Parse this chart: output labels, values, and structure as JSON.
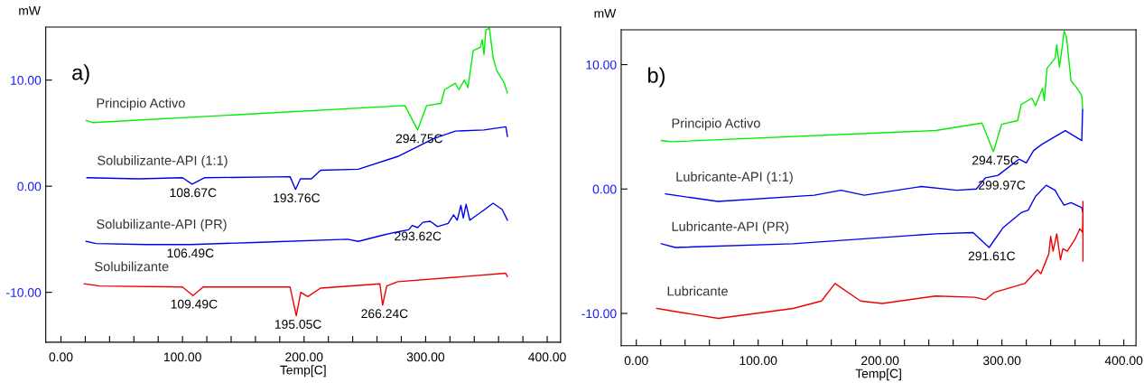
{
  "chart_data": [
    {
      "type": "line",
      "title": "a)",
      "xlabel": "Temp[C]",
      "ylabel": "mW",
      "legend": false,
      "grid": false,
      "marker": "none",
      "line_style": "solid",
      "xlim": [
        -12.5,
        411
      ],
      "ylim": [
        -14.7,
        15
      ],
      "xticks": [
        {
          "value": 0,
          "label": "0.00"
        },
        {
          "value": 20,
          "label": null
        },
        {
          "value": 40,
          "label": null
        },
        {
          "value": 60,
          "label": null
        },
        {
          "value": 80,
          "label": null
        },
        {
          "value": 100,
          "label": "100.00"
        },
        {
          "value": 120,
          "label": null
        },
        {
          "value": 140,
          "label": null
        },
        {
          "value": 160,
          "label": null
        },
        {
          "value": 180,
          "label": null
        },
        {
          "value": 200,
          "label": "200.00"
        },
        {
          "value": 220,
          "label": null
        },
        {
          "value": 240,
          "label": null
        },
        {
          "value": 260,
          "label": null
        },
        {
          "value": 280,
          "label": null
        },
        {
          "value": 300,
          "label": "300.00"
        },
        {
          "value": 320,
          "label": null
        },
        {
          "value": 340,
          "label": null
        },
        {
          "value": 360,
          "label": null
        },
        {
          "value": 380,
          "label": null
        },
        {
          "value": 400,
          "label": "400.00"
        }
      ],
      "yticks": [
        {
          "value": -10,
          "label": "-10.00"
        },
        {
          "value": 0,
          "label": "0.00"
        },
        {
          "value": 10,
          "label": "10.00"
        }
      ],
      "series": [
        {
          "name": "Principio Activo",
          "color": "#00ee00",
          "x": [
            20.7,
            25.9,
            283,
            293.4,
            300.8,
            312.6,
            315.6,
            324.5,
            327.4,
            331.9,
            334.8,
            339.2,
            345,
            346.6,
            348,
            349.5,
            352.5,
            355.5,
            358.5,
            364.4,
            367.3
          ],
          "values": [
            6.2,
            6.0,
            7.6,
            5.3,
            7.6,
            7.8,
            9.1,
            9.7,
            9.1,
            10.0,
            9.3,
            12.8,
            13.1,
            13.8,
            12.4,
            14.7,
            14.9,
            12.1,
            10.9,
            9.8,
            8.8
          ]
        },
        {
          "name": "Solubilizante-API (1:1)",
          "color": "#0000ee",
          "x": [
            21.4,
            64,
            100,
            107.9,
            118,
            188.5,
            193,
            197,
            206,
            213.6,
            244.6,
            277,
            306.7,
            324.5,
            348,
            366,
            367.3
          ],
          "values": [
            0.8,
            0.7,
            0.8,
            0.2,
            0.8,
            0.9,
            -0.3,
            0.7,
            0.7,
            1.5,
            1.6,
            2.8,
            4.5,
            5.2,
            5.3,
            5.6,
            4.7
          ]
        },
        {
          "name": "Solubilizante-API (PR)",
          "color": "#0000ee",
          "x": [
            20.7,
            28.8,
            70,
            106.8,
            158.9,
            235.8,
            244.6,
            265,
            277,
            286,
            289,
            293.4,
            297.8,
            303.8,
            309.7,
            318.5,
            323,
            326,
            329,
            331,
            333.3,
            336.3,
            345,
            355.5,
            363,
            367.3
          ],
          "values": [
            -5.2,
            -5.4,
            -5.5,
            -5.5,
            -5.3,
            -5.0,
            -5.2,
            -4.6,
            -4.3,
            -4.1,
            -3.7,
            -3.9,
            -3.4,
            -3.3,
            -3.8,
            -3.5,
            -2.7,
            -3.2,
            -1.8,
            -3.0,
            -1.7,
            -3.2,
            -2.5,
            -1.6,
            -2.2,
            -3.2
          ]
        },
        {
          "name": "Solubilizante",
          "color": "#ee0000",
          "x": [
            19.2,
            31.8,
            100,
            108.6,
            117,
            188.5,
            193.6,
            197.3,
            203,
            213.6,
            262.4,
            264.6,
            268,
            277,
            365.9,
            367.3
          ],
          "values": [
            -9.2,
            -9.4,
            -9.5,
            -10.3,
            -9.5,
            -9.5,
            -12.2,
            -10.0,
            -10.4,
            -9.6,
            -9.2,
            -11.2,
            -9.4,
            -9.0,
            -8.2,
            -8.5
          ]
        }
      ],
      "annotations": [
        {
          "text": "294.75C",
          "x": 294.75,
          "y": 5.3
        },
        {
          "text": "108.67C",
          "x": 108.67,
          "y": 0.2
        },
        {
          "text": "193.76C",
          "x": 193.76,
          "y": -0.3
        },
        {
          "text": "106.49C",
          "x": 106.49,
          "y": -5.5
        },
        {
          "text": "293.62C",
          "x": 293.62,
          "y": -3.9
        },
        {
          "text": "109.49C",
          "x": 109.49,
          "y": -10.3
        },
        {
          "text": "195.05C",
          "x": 195.05,
          "y": -12.2
        },
        {
          "text": "266.24C",
          "x": 266.24,
          "y": -11.2
        }
      ]
    },
    {
      "type": "line",
      "title": "b)",
      "xlabel": "Temp[C]",
      "ylabel": "mW",
      "legend": false,
      "grid": false,
      "marker": "none",
      "line_style": "solid",
      "xlim": [
        -12.4,
        410
      ],
      "ylim": [
        -12.6,
        12.8
      ],
      "xticks": [
        {
          "value": 0,
          "label": "0.00"
        },
        {
          "value": 20,
          "label": null
        },
        {
          "value": 40,
          "label": null
        },
        {
          "value": 60,
          "label": null
        },
        {
          "value": 80,
          "label": null
        },
        {
          "value": 100,
          "label": "100.00"
        },
        {
          "value": 120,
          "label": null
        },
        {
          "value": 140,
          "label": null
        },
        {
          "value": 160,
          "label": null
        },
        {
          "value": 180,
          "label": null
        },
        {
          "value": 200,
          "label": "200.00"
        },
        {
          "value": 220,
          "label": null
        },
        {
          "value": 240,
          "label": null
        },
        {
          "value": 260,
          "label": null
        },
        {
          "value": 280,
          "label": null
        },
        {
          "value": 300,
          "label": "300.00"
        },
        {
          "value": 320,
          "label": null
        },
        {
          "value": 340,
          "label": null
        },
        {
          "value": 360,
          "label": null
        },
        {
          "value": 380,
          "label": null
        },
        {
          "value": 400,
          "label": "400.00"
        }
      ],
      "yticks": [
        {
          "value": -10,
          "label": "-10.00"
        },
        {
          "value": 0,
          "label": "0.00"
        },
        {
          "value": 10,
          "label": "10.00"
        }
      ],
      "series": [
        {
          "name": "Principio Activo",
          "color": "#00ee00",
          "x": [
            20.5,
            29,
            245.6,
            283.6,
            293,
            299.7,
            312.9,
            315.8,
            324.6,
            327.5,
            333.3,
            334.8,
            337,
            343.6,
            345,
            347.2,
            349.4,
            351,
            353,
            356.7,
            361,
            365.5,
            366.2
          ],
          "values": [
            3.9,
            3.8,
            4.7,
            5.3,
            3.0,
            5.2,
            5.5,
            6.8,
            7.3,
            6.7,
            8.1,
            7.1,
            9.7,
            10.5,
            11.6,
            9.8,
            11.4,
            12.7,
            12.2,
            8.7,
            8.2,
            7.5,
            6.5
          ]
        },
        {
          "name": "Lubricante-API (1:1)",
          "color": "#0000ee",
          "x": [
            24,
            67,
            146,
            168,
            187,
            234,
            263,
            279,
            286.5,
            296.8,
            314,
            320,
            326,
            333,
            352,
            365.5,
            366.2
          ],
          "values": [
            -0.4,
            -1.0,
            -0.5,
            -0.1,
            -0.5,
            0.2,
            -0.1,
            0,
            0.9,
            1.1,
            2.4,
            2.1,
            3.1,
            3.6,
            4.7,
            3.9,
            6.4
          ]
        },
        {
          "name": "Lubricante-API (PR)",
          "color": "#0000ee",
          "x": [
            20.5,
            32,
            128.7,
            245.6,
            276.3,
            289.5,
            301,
            315.8,
            321.6,
            327.5,
            336.3,
            343.6,
            346.5,
            351,
            356.7,
            365.5,
            366.2
          ],
          "values": [
            -4.4,
            -4.7,
            -4.4,
            -3.6,
            -3.5,
            -4.7,
            -3.1,
            -1.9,
            -1.7,
            -0.6,
            0.3,
            -0.1,
            -0.6,
            -1.3,
            -1.1,
            -1.5,
            -1.8
          ]
        },
        {
          "name": "Lubricante",
          "color": "#ee0000",
          "x": [
            16.8,
            29,
            67.3,
            128.7,
            152,
            163,
            184,
            201.8,
            245.6,
            277.8,
            286.5,
            294,
            318.7,
            329,
            332,
            338.5,
            340,
            342,
            345,
            348,
            350,
            353.6,
            359.6,
            364,
            366.2,
            366.5,
            366.5
          ],
          "values": [
            -9.6,
            -9.8,
            -10.4,
            -9.6,
            -9.0,
            -7.6,
            -9.0,
            -9.2,
            -8.6,
            -8.7,
            -8.9,
            -8.3,
            -7.6,
            -6.5,
            -6.8,
            -5.2,
            -3.8,
            -5.0,
            -3.6,
            -5.7,
            -4.8,
            -5.0,
            -4.1,
            -3.2,
            -3.5,
            -1.0,
            -5.8
          ]
        }
      ],
      "annotations": [
        {
          "text": "294.75C",
          "x": 294.75,
          "y": 3.0
        },
        {
          "text": "299.97C",
          "x": 299.97,
          "y": 1.0
        },
        {
          "text": "291.61C",
          "x": 291.61,
          "y": -4.7
        }
      ]
    }
  ]
}
